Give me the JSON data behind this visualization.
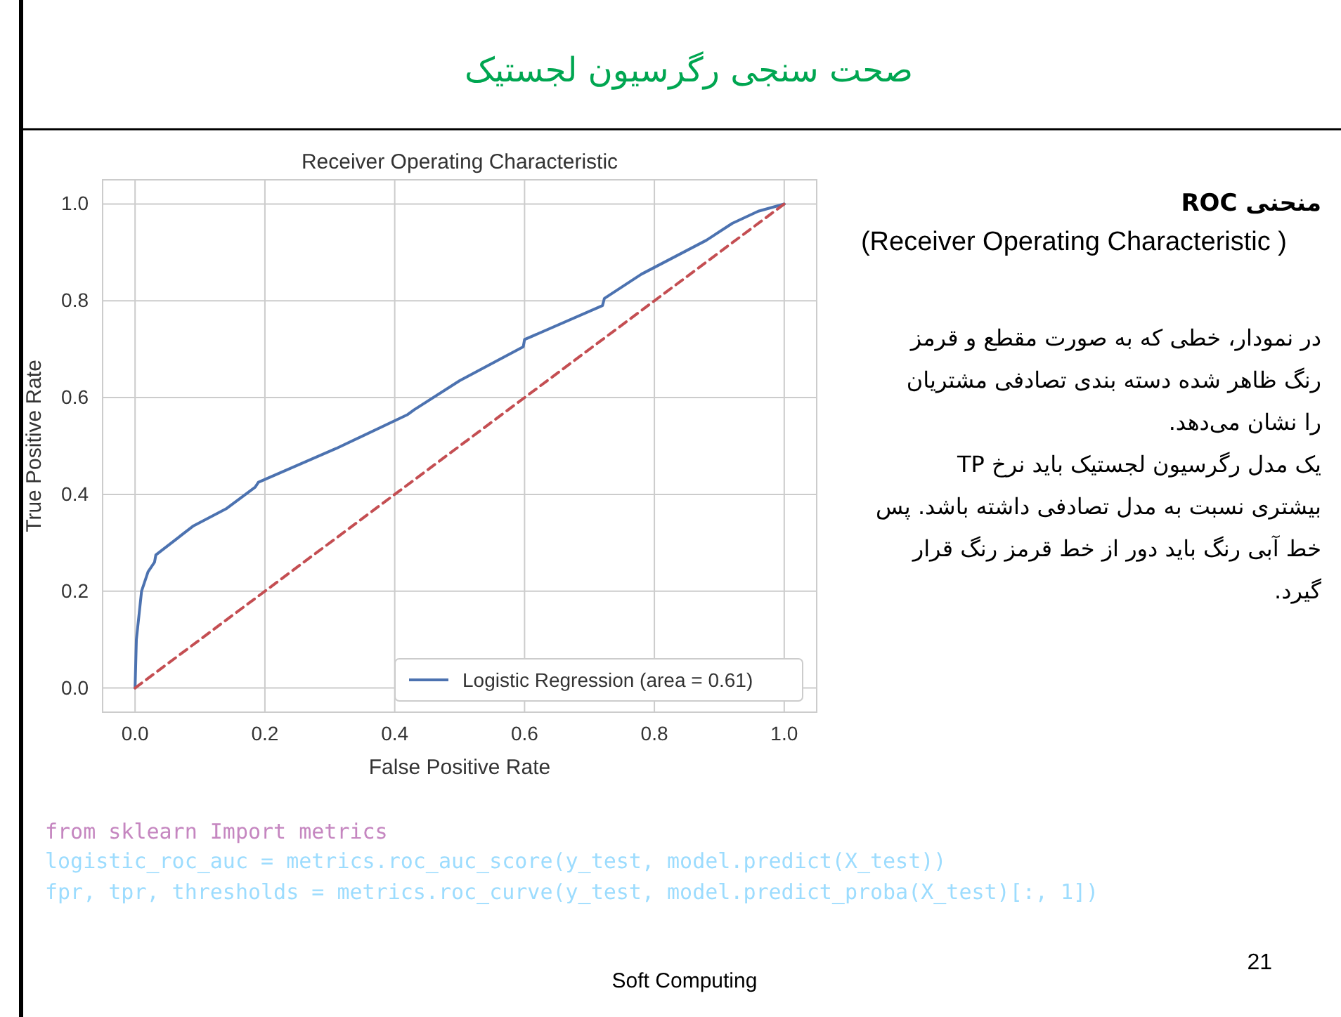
{
  "chart_data": {
    "type": "line",
    "title": "Receiver Operating Characteristic",
    "xlabel": "False Positive Rate",
    "ylabel": "True Positive Rate",
    "xlim": [
      -0.05,
      1.05
    ],
    "ylim": [
      -0.05,
      1.05
    ],
    "xticks": [
      {
        "value": 0,
        "label": "0.0"
      },
      {
        "value": 0.2,
        "label": "0.2"
      },
      {
        "value": 0.4,
        "label": "0.4"
      },
      {
        "value": 0.6,
        "label": "0.6"
      },
      {
        "value": 0.8,
        "label": "0.8"
      },
      {
        "value": 1,
        "label": "1.0"
      }
    ],
    "yticks": [
      {
        "value": 0,
        "label": "0.0"
      },
      {
        "value": 0.2,
        "label": "0.2"
      },
      {
        "value": 0.4,
        "label": "0.4"
      },
      {
        "value": 0.6,
        "label": "0.6"
      },
      {
        "value": 0.8,
        "label": "0.8"
      },
      {
        "value": 1,
        "label": "1.0"
      }
    ],
    "grid": true,
    "legend": "bottom right",
    "series": [
      {
        "name": "Logistic Regression (area = 0.61)",
        "color": "#4c72b0",
        "line_style": "solid",
        "x": [
          0,
          0.002,
          0.01,
          0.02,
          0.03,
          0.032,
          0.09,
          0.14,
          0.185,
          0.19,
          0.31,
          0.42,
          0.43,
          0.5,
          0.598,
          0.6,
          0.72,
          0.723,
          0.78,
          0.88,
          0.92,
          0.96,
          1
        ],
        "values": [
          0,
          0.1,
          0.2,
          0.24,
          0.26,
          0.275,
          0.335,
          0.37,
          0.415,
          0.425,
          0.495,
          0.565,
          0.575,
          0.635,
          0.705,
          0.72,
          0.79,
          0.805,
          0.855,
          0.925,
          0.96,
          0.985,
          1
        ]
      },
      {
        "color": "#c44e52",
        "line_style": "dashed",
        "x": [
          0,
          1
        ],
        "values": [
          0,
          1
        ]
      }
    ],
    "annotations": [
      "صحت سنجی رگرسیون لجستیک",
      "منحنی ROC",
      "(Receiver Operating Characteristic )",
      "در نمودار، خطی که به صورت مقطع و قرمز",
      "رنگ ظاهر شده دسته بندی تصادفی مشتریان",
      "را نشان می‌دهد.",
      "یک مدل رگرسیون لجستیک باید نرخ TP",
      "بیشتری نسبت به مدل تصادفی داشته باشد. پس",
      "خط آبی رنگ باید دور از خط قرمز رنگ قرار",
      "گیرد.",
      "from sklearn Import metrics",
      "logistic_roc_auc = metrics.roc_auc_score(y_test, model.predict(X_test))",
      "fpr, tpr, thresholds = metrics.roc_curve(y_test, model.predict_proba(X_test)[:, 1])",
      "Soft Computing",
      "21"
    ]
  }
}
